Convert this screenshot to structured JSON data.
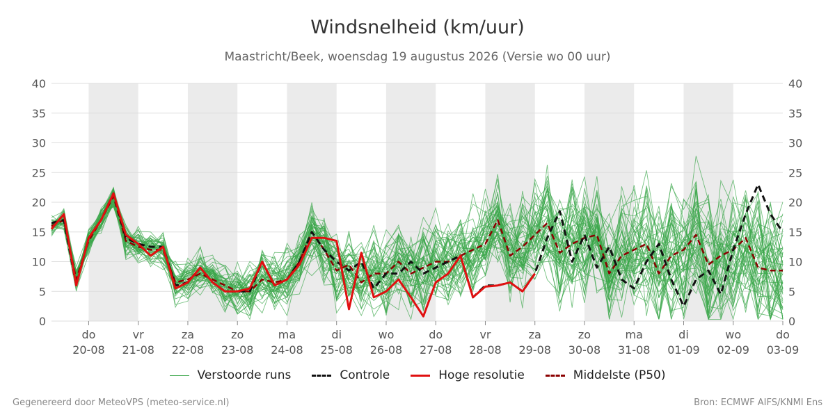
{
  "title": "Windsnelheid (km/uur)",
  "subtitle": "Maastricht/Beek, woensdag 19 augustus 2026 (Versie wo 00 uur)",
  "credit_left": "Gegenereerd door MeteoVPS (meteo-service.nl)",
  "credit_right": "Bron: ECMWF AIFS/KNMI Ens",
  "colors": {
    "ensemble": "#3aa64a",
    "control": "#111111",
    "hires": "#e01010",
    "median": "#8b0000",
    "shade": "#ebebeb",
    "grid": "#dddddd"
  },
  "legend": [
    {
      "key": "ensemble",
      "label": "Verstoorde runs",
      "style": "thin-solid"
    },
    {
      "key": "control",
      "label": "Controle",
      "style": "dashed"
    },
    {
      "key": "hires",
      "label": "Hoge resolutie",
      "style": "solid"
    },
    {
      "key": "median",
      "label": "Middelste (P50)",
      "style": "dashed"
    }
  ],
  "chart_data": {
    "type": "line",
    "title": "Windsnelheid (km/uur)",
    "ylim": [
      0,
      40
    ],
    "yticks": [
      0,
      5,
      10,
      15,
      20,
      25,
      30,
      35,
      40
    ],
    "xlim": [
      -0.75,
      14.0
    ],
    "grid": true,
    "legend_position": "bottom",
    "day_ticks": [
      {
        "day": "do",
        "date": "20-08"
      },
      {
        "day": "vr",
        "date": "21-08"
      },
      {
        "day": "za",
        "date": "22-08"
      },
      {
        "day": "zo",
        "date": "23-08"
      },
      {
        "day": "ma",
        "date": "24-08"
      },
      {
        "day": "di",
        "date": "25-08"
      },
      {
        "day": "wo",
        "date": "26-08"
      },
      {
        "day": "do",
        "date": "27-08"
      },
      {
        "day": "vr",
        "date": "28-08"
      },
      {
        "day": "za",
        "date": "29-08"
      },
      {
        "day": "zo",
        "date": "30-08"
      },
      {
        "day": "ma",
        "date": "31-08"
      },
      {
        "day": "di",
        "date": "01-09"
      },
      {
        "day": "wo",
        "date": "02-09"
      },
      {
        "day": "do",
        "date": "03-09"
      }
    ],
    "shaded_days": [
      0,
      2,
      4,
      6,
      8,
      10,
      12
    ],
    "ensemble_count": 50,
    "series": [
      {
        "name": "Controle",
        "x": [
          -0.75,
          -0.5,
          -0.25,
          0,
          0.25,
          0.5,
          0.75,
          1,
          1.25,
          1.5,
          1.75,
          2,
          2.25,
          2.5,
          2.75,
          3,
          3.25,
          3.5,
          3.75,
          4,
          4.25,
          4.5,
          4.75,
          5,
          5.25,
          5.5,
          5.75,
          6,
          6.25,
          6.5,
          6.75,
          7,
          7.25,
          7.5,
          7.75,
          8,
          8.25,
          8.5,
          8.75,
          9,
          9.25,
          9.5,
          9.75,
          10,
          10.25,
          10.5,
          10.75,
          11,
          11.25,
          11.5,
          11.75,
          12,
          12.25,
          12.5,
          12.75,
          13,
          13.25,
          13.5,
          13.75,
          14
        ],
        "values": [
          16.5,
          17,
          6,
          14,
          17,
          21.5,
          14,
          13,
          12.5,
          12.5,
          6,
          6.5,
          9,
          6.5,
          5,
          5,
          5,
          10,
          6,
          7,
          10,
          15,
          12,
          10,
          8.5,
          10,
          5.5,
          8,
          8,
          10,
          8,
          9,
          10,
          11,
          4,
          6,
          6,
          6.5,
          5,
          8,
          14,
          18.5,
          10,
          14.5,
          9,
          12.5,
          7,
          5.5,
          10,
          13,
          7,
          2.5,
          7,
          8.5,
          4.5,
          12,
          18,
          23,
          18,
          15
        ]
      },
      {
        "name": "Hoge resolutie",
        "x": [
          -0.75,
          -0.5,
          -0.25,
          0,
          0.25,
          0.5,
          0.75,
          1,
          1.25,
          1.5,
          1.75,
          2,
          2.25,
          2.5,
          2.75,
          3,
          3.25,
          3.5,
          3.75,
          4,
          4.25,
          4.5,
          4.75,
          5,
          5.25,
          5.5,
          5.75,
          6,
          6.25,
          6.5,
          6.75,
          7,
          7.25,
          7.5,
          7.75,
          8,
          8.25,
          8.5,
          8.75,
          9
        ],
        "values": [
          15.5,
          18,
          6,
          14,
          17,
          21.5,
          14.5,
          13,
          11,
          12.5,
          5.5,
          6.5,
          9,
          6.5,
          5,
          5,
          5.5,
          10,
          6,
          7,
          9.5,
          14,
          14,
          13.5,
          2,
          11.5,
          4,
          5,
          7,
          4,
          0.8,
          6.5,
          8,
          11,
          4,
          5.8,
          6,
          6.5,
          5,
          8
        ]
      },
      {
        "name": "Middelste (P50)",
        "x": [
          -0.75,
          -0.5,
          -0.25,
          0,
          0.25,
          0.5,
          0.75,
          1,
          1.25,
          1.5,
          1.75,
          2,
          2.25,
          2.5,
          2.75,
          3,
          3.25,
          3.5,
          3.75,
          4,
          4.25,
          4.5,
          4.75,
          5,
          5.25,
          5.5,
          5.75,
          6,
          6.25,
          6.5,
          6.75,
          7,
          7.25,
          7.5,
          7.75,
          8,
          8.25,
          8.5,
          8.75,
          9,
          9.25,
          9.5,
          9.75,
          10,
          10.25,
          10.5,
          10.75,
          11,
          11.25,
          11.5,
          11.75,
          12,
          12.25,
          12.5,
          12.75,
          13,
          13.25,
          13.5,
          13.75,
          14
        ],
        "values": [
          16,
          17,
          7,
          13.5,
          17,
          21,
          13.5,
          12.5,
          12,
          12,
          6.5,
          7,
          8,
          7,
          6,
          5,
          5,
          7,
          6.5,
          7,
          10,
          15,
          12,
          8.5,
          9.5,
          6.5,
          8,
          8,
          10,
          8,
          9,
          10,
          10,
          11,
          12,
          13,
          17,
          11,
          12.5,
          14.5,
          16.5,
          11.5,
          13,
          14,
          14.5,
          8,
          11,
          12,
          13,
          8,
          11,
          12,
          14.5,
          9.5,
          11,
          12,
          14,
          9,
          8.5,
          8.5
        ]
      }
    ]
  }
}
